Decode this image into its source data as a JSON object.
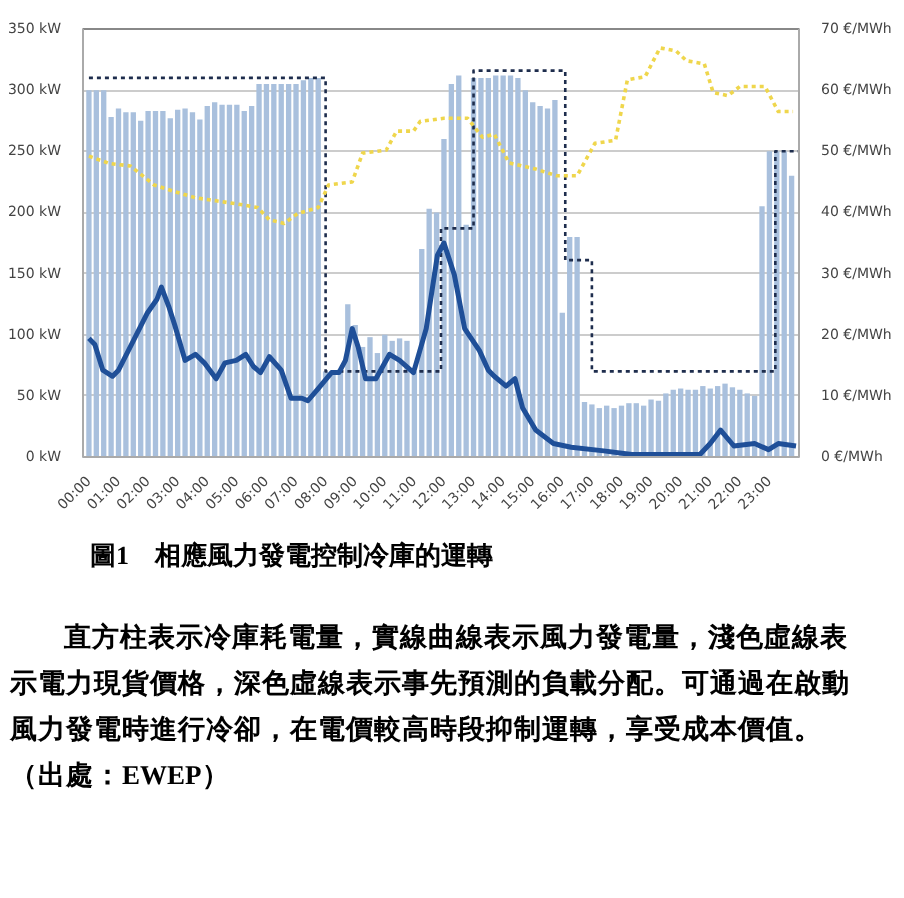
{
  "chart_data": {
    "type": "bar",
    "title": "圖1　相應風力發電控制冷庫的運轉",
    "annotations": [
      "直方柱表示冷庫耗電量，實線曲線表示風力發電量，淺色虛線表示電力現貨價格，深色虛線表示事先預測的負載分配。可通過在啟動風力發電時進行冷卻，在電價較高時段抑制運轉，享受成本價值。（出處：EWEP）"
    ],
    "xlim": [
      -0.2,
      24
    ],
    "xticks": [
      {
        "value": 0,
        "label": "00:00"
      },
      {
        "value": 1,
        "label": "01:00"
      },
      {
        "value": 2,
        "label": "02:00"
      },
      {
        "value": 3,
        "label": "03:00"
      },
      {
        "value": 4,
        "label": "04:00"
      },
      {
        "value": 5,
        "label": "05:00"
      },
      {
        "value": 6,
        "label": "06:00"
      },
      {
        "value": 7,
        "label": "07:00"
      },
      {
        "value": 8,
        "label": "08:00"
      },
      {
        "value": 9,
        "label": "09:00"
      },
      {
        "value": 10,
        "label": "10:00"
      },
      {
        "value": 11,
        "label": "11:00"
      },
      {
        "value": 12,
        "label": "12:00"
      },
      {
        "value": 13,
        "label": "13:00"
      },
      {
        "value": 14,
        "label": "14:00"
      },
      {
        "value": 15,
        "label": "15:00"
      },
      {
        "value": 16,
        "label": "16:00"
      },
      {
        "value": 17,
        "label": "17:00"
      },
      {
        "value": 18,
        "label": "18:00"
      },
      {
        "value": 19,
        "label": "19:00"
      },
      {
        "value": 20,
        "label": "20:00"
      },
      {
        "value": 21,
        "label": "21:00"
      },
      {
        "value": 22,
        "label": "22:00"
      },
      {
        "value": 23,
        "label": "23:00"
      }
    ],
    "ylim": [
      0,
      350
    ],
    "yticks": [
      {
        "value": 0,
        "label": "0 kW"
      },
      {
        "value": 50,
        "label": "50 kW"
      },
      {
        "value": 100,
        "label": "100 kW"
      },
      {
        "value": 150,
        "label": "150 kW"
      },
      {
        "value": 200,
        "label": "200 kW"
      },
      {
        "value": 250,
        "label": "250 kW"
      },
      {
        "value": 300,
        "label": "300 kW"
      },
      {
        "value": 350,
        "label": "350 kW"
      }
    ],
    "y2lim": [
      0,
      70
    ],
    "y2ticks": [
      {
        "value": 0,
        "label": "0 €/MWh"
      },
      {
        "value": 10,
        "label": "10 €/MWh"
      },
      {
        "value": 20,
        "label": "20 €/MWh"
      },
      {
        "value": 30,
        "label": "30 €/MWh"
      },
      {
        "value": 40,
        "label": "40 €/MWh"
      },
      {
        "value": 50,
        "label": "50 €/MWh"
      },
      {
        "value": 60,
        "label": "60 €/MWh"
      },
      {
        "value": 70,
        "label": "70 €/MWh"
      }
    ],
    "grid": "y",
    "series": [
      {
        "color": "#a9c0dd",
        "x": [
          0,
          0.25,
          0.5,
          0.75,
          1,
          1.25,
          1.5,
          1.75,
          2,
          2.25,
          2.5,
          2.75,
          3,
          3.25,
          3.5,
          3.75,
          4,
          4.25,
          4.5,
          4.75,
          5,
          5.25,
          5.5,
          5.75,
          6,
          6.25,
          6.5,
          6.75,
          7,
          7.25,
          7.5,
          7.75,
          8,
          8.25,
          8.5,
          8.75,
          9,
          9.25,
          9.5,
          9.75,
          10,
          10.25,
          10.5,
          10.75,
          11,
          11.25,
          11.5,
          11.75,
          12,
          12.25,
          12.5,
          12.75,
          13,
          13.25,
          13.5,
          13.75,
          14,
          14.25,
          14.5,
          14.75,
          15,
          15.25,
          15.5,
          15.75,
          16,
          16.25,
          16.5,
          16.75,
          17,
          17.25,
          17.5,
          17.75,
          18,
          18.25,
          18.5,
          18.75,
          19,
          19.25,
          19.5,
          19.75,
          20,
          20.25,
          20.5,
          20.75,
          21,
          21.25,
          21.5,
          21.75,
          22,
          22.25,
          22.5,
          22.75,
          23,
          23.25,
          23.5,
          23.75
        ],
        "values": [
          300,
          300,
          300,
          278,
          285,
          282,
          282,
          275,
          283,
          283,
          283,
          277,
          284,
          285,
          282,
          276,
          287,
          290,
          288,
          288,
          288,
          283,
          287,
          305,
          305,
          305,
          305,
          305,
          305,
          308,
          310,
          310,
          70,
          70,
          72,
          125,
          108,
          90,
          98,
          85,
          100,
          95,
          97,
          95,
          70,
          170,
          203,
          200,
          260,
          305,
          312,
          190,
          310,
          310,
          310,
          312,
          312,
          312,
          310,
          300,
          290,
          287,
          285,
          292,
          118,
          180,
          180,
          45,
          43,
          40,
          42,
          40,
          42,
          44,
          44,
          42,
          47,
          46,
          52,
          55,
          56,
          55,
          55,
          58,
          56,
          58,
          60,
          57,
          55,
          52,
          50,
          205,
          250,
          250,
          250,
          230
        ]
      },
      {
        "type": "step",
        "color": "#1e2d4d",
        "line_style": "dotted",
        "x": [
          0,
          8,
          11.9,
          13,
          16.1,
          17,
          23.2,
          24
        ],
        "values": [
          310,
          70,
          187,
          316,
          161,
          70,
          250,
          250
        ]
      },
      {
        "type": "line",
        "color": "#1f4f98",
        "line_style": "solid",
        "x": [
          0,
          0.2,
          0.47,
          0.8,
          1,
          1.5,
          1.98,
          2.3,
          2.45,
          2.7,
          2.9,
          3.25,
          3.6,
          3.9,
          4.3,
          4.6,
          4.98,
          5.3,
          5.56,
          5.8,
          6.1,
          6.5,
          6.83,
          7.2,
          7.4,
          7.75,
          8.2,
          8.45,
          8.67,
          8.9,
          9.1,
          9.35,
          9.7,
          10.16,
          10.5,
          10.97,
          11.4,
          11.78,
          12,
          12.35,
          12.7,
          13.2,
          13.5,
          13.7,
          14.1,
          14.4,
          14.66,
          15.1,
          15.7,
          16.3,
          17.4,
          18.35,
          20.65,
          21,
          21.35,
          21.8,
          22.5,
          22.97,
          23.3,
          23.9
        ],
        "values": [
          97,
          92,
          71,
          66,
          71,
          95,
          118,
          129,
          139,
          123,
          108,
          79,
          84,
          77,
          64,
          77,
          79,
          84,
          74,
          69,
          82,
          71,
          48,
          48,
          46,
          56,
          69,
          69,
          79,
          105,
          90,
          64,
          64,
          84,
          79,
          69,
          105,
          165,
          175,
          149,
          105,
          87,
          71,
          66,
          58,
          64,
          40,
          22,
          11,
          8,
          5,
          2,
          2,
          11,
          22,
          9,
          11,
          6,
          11,
          9
        ]
      },
      {
        "type": "line",
        "axis": "y2",
        "color": "#efd64c",
        "line_style": "dotted",
        "x": [
          0,
          0.7,
          1.4,
          2.2,
          2.9,
          3.6,
          4.3,
          5,
          5.7,
          6.1,
          6.6,
          7.05,
          7.75,
          8.1,
          8.9,
          9.25,
          10.05,
          10.4,
          10.97,
          11.2,
          12,
          12.8,
          13.3,
          13.7,
          14.2,
          15.1,
          15.8,
          16.5,
          17.1,
          17.8,
          18.2,
          18.8,
          19.3,
          19.85,
          20.2,
          20.8,
          21.1,
          21.6,
          22,
          22.85,
          23.3,
          23.8
        ],
        "values": [
          49.2,
          48,
          47.6,
          44.5,
          43.4,
          42.4,
          41.9,
          41.4,
          40.8,
          38.8,
          38.2,
          39.8,
          40.8,
          44.5,
          45,
          49.7,
          50.2,
          53.3,
          53.3,
          54.9,
          55.4,
          55.4,
          52.3,
          52.8,
          48.1,
          47.1,
          46,
          46,
          51.3,
          51.8,
          61.7,
          62.2,
          66.9,
          66.4,
          64.8,
          64.3,
          59.6,
          59.1,
          60.6,
          60.6,
          56.5,
          56.5
        ]
      }
    ]
  }
}
